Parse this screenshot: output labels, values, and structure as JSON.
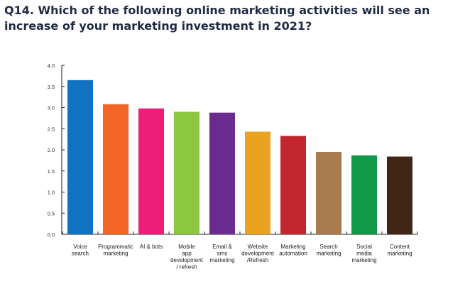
{
  "title": "Q14. Which of the following online marketing activities will see an increase of your marketing investment in 2021?",
  "chart_data": {
    "type": "bar",
    "title": "Q14. Which of the following online marketing activities will see an increase of your marketing investment in 2021?",
    "xlabel": "",
    "ylabel": "",
    "ylim": [
      0,
      4.0
    ],
    "yticks": [
      "0.0",
      "0.5",
      "1.0",
      "1.5",
      "2.0",
      "2.5",
      "3.0",
      "3.5",
      "4.0"
    ],
    "grid": false,
    "categories": [
      [
        "Voice",
        "search"
      ],
      [
        "Programmatic",
        "marketing"
      ],
      [
        "AI & bots"
      ],
      [
        "Mobile",
        "app",
        "development",
        "/ refresh"
      ],
      [
        "Email &",
        "sms",
        "marketing"
      ],
      [
        "Website",
        "development",
        "/Refresh"
      ],
      [
        "Marketing",
        "automation"
      ],
      [
        "Search",
        "marketing"
      ],
      [
        "Social",
        "media",
        "marketing"
      ],
      [
        "Content",
        "marketing"
      ]
    ],
    "values": [
      3.65,
      3.08,
      2.98,
      2.9,
      2.88,
      2.43,
      2.33,
      1.95,
      1.87,
      1.84
    ],
    "colors": [
      "#1172c1",
      "#f26522",
      "#ed1e79",
      "#8dc63f",
      "#6a2c91",
      "#e8a321",
      "#c1272d",
      "#a97c50",
      "#119848",
      "#3f2617"
    ]
  }
}
